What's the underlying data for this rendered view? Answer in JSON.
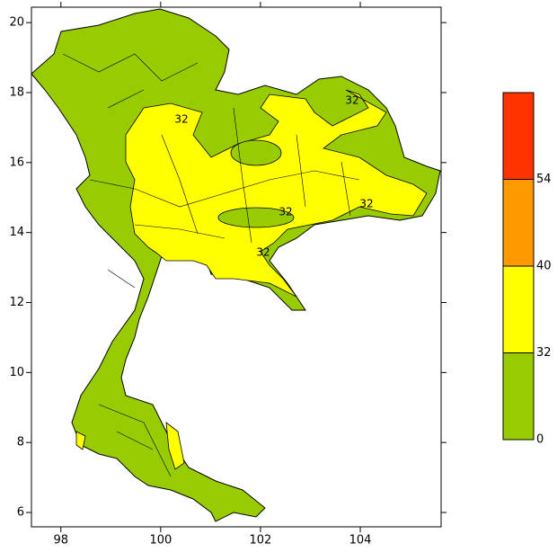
{
  "map": {
    "xlim": [
      97.41,
      105.62
    ],
    "ylim": [
      5.59,
      20.44
    ],
    "xticks": [
      98,
      100,
      102,
      104
    ],
    "yticks": [
      6,
      8,
      10,
      12,
      14,
      16,
      18,
      20
    ],
    "contour_labels": [
      32,
      32,
      32,
      32,
      32
    ],
    "colorbar": {
      "levels": [
        0,
        32,
        40,
        54
      ],
      "colors": [
        "#99cc00",
        "#ffff00",
        "#ff9900",
        "#ff3300"
      ]
    }
  }
}
